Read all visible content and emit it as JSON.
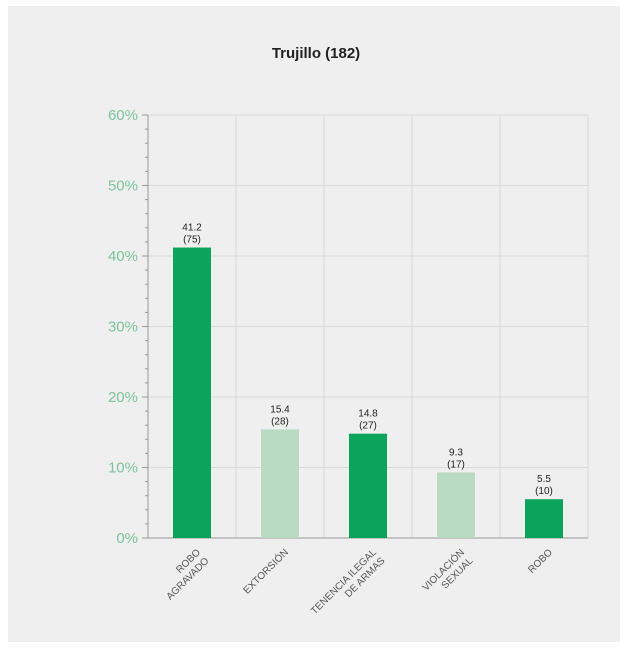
{
  "chart_data": {
    "type": "bar",
    "title": "Trujillo (182)",
    "xlabel": "",
    "ylabel": "",
    "ylim": [
      0,
      60
    ],
    "yticks": [
      0,
      10,
      20,
      30,
      40,
      50,
      60
    ],
    "ytick_labels": [
      "0%",
      "10%",
      "20%",
      "30%",
      "40%",
      "50%",
      "60%"
    ],
    "grid": true,
    "categories": [
      [
        "ROBO",
        "AGRAVADO"
      ],
      [
        "EXTORSIÓN"
      ],
      [
        "TENENCIA ILEGAL",
        "DE ARMAS"
      ],
      [
        "VIOLACIÓN",
        "SEXUAL"
      ],
      [
        "ROBO"
      ]
    ],
    "values": [
      41.2,
      15.4,
      14.8,
      9.3,
      5.5
    ],
    "value_labels": [
      "41.2",
      "15.4",
      "14.8",
      "9.3",
      "5.5"
    ],
    "counts": [
      "(75)",
      "(28)",
      "(27)",
      "(17)",
      "(10)"
    ],
    "colors": [
      "#0aa45a",
      "#b9dbc4",
      "#0aa45a",
      "#b9dbc4",
      "#0aa45a"
    ]
  }
}
